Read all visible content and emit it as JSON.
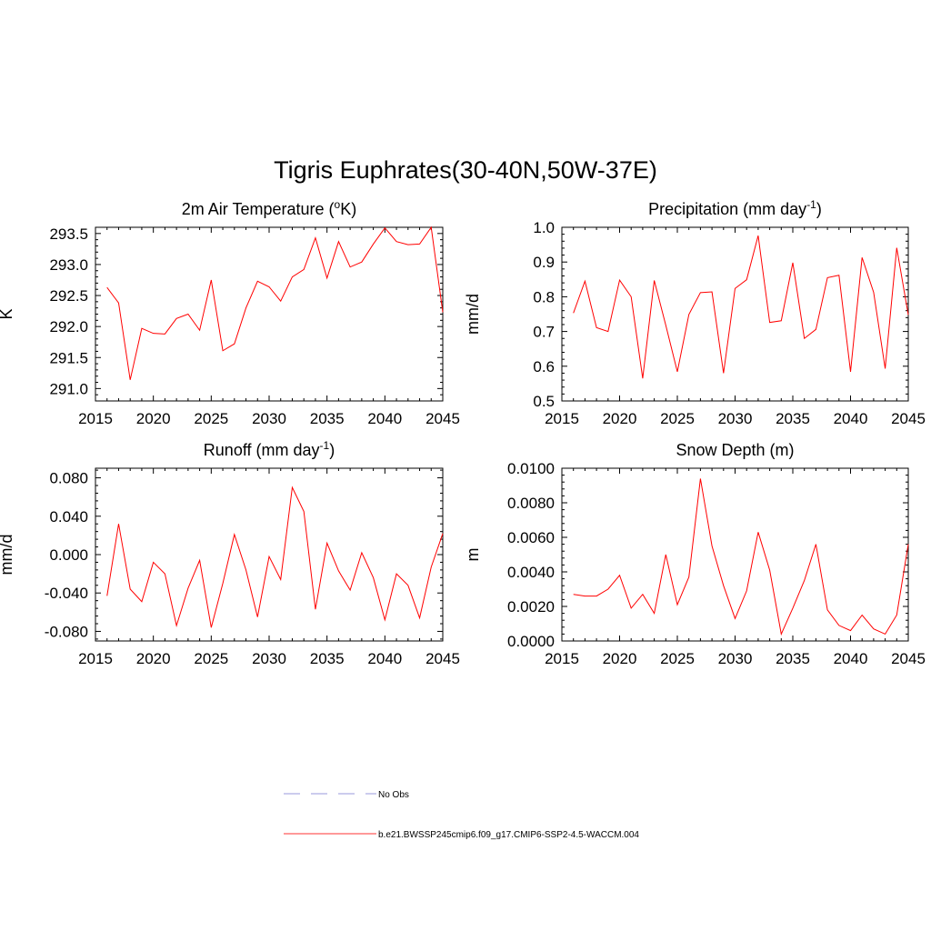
{
  "figure_title": "Tigris Euphrates(30-40N,50W-37E)",
  "legend": {
    "entries": [
      {
        "label": "No Obs",
        "color": "#9999dd",
        "dash": "dashed"
      },
      {
        "label": "b.e21.BWSSP245cmip6.f09_g17.CMIP6-SSP2-4.5-WACCM.004",
        "color": "#ff3333",
        "dash": "solid"
      }
    ]
  },
  "chart_data": [
    {
      "type": "line",
      "title": "2m Air Temperature (",
      "title_sup": "o",
      "title_tail": "K)",
      "ylabel": "K",
      "xlim": [
        2015,
        2045
      ],
      "ylim": [
        290.8,
        293.6
      ],
      "xticks": [
        2015,
        2020,
        2025,
        2030,
        2035,
        2040,
        2045
      ],
      "yticks": [
        291.0,
        291.5,
        292.0,
        292.5,
        293.0,
        293.5
      ],
      "ytick_decimals": 1,
      "ytick_labels": [
        "291.0",
        "291.5",
        "292.0",
        "292.5",
        "293.0",
        "293.5"
      ],
      "color": "#ff0000",
      "x": [
        2016,
        2017,
        2018,
        2019,
        2020,
        2021,
        2022,
        2023,
        2024,
        2025,
        2026,
        2027,
        2028,
        2029,
        2030,
        2031,
        2032,
        2033,
        2034,
        2035,
        2036,
        2037,
        2038,
        2039,
        2040,
        2041,
        2042,
        2043,
        2044,
        2045
      ],
      "y": [
        292.63,
        292.38,
        291.14,
        291.97,
        291.89,
        291.88,
        292.13,
        292.2,
        291.94,
        292.75,
        291.61,
        291.72,
        292.3,
        292.73,
        292.64,
        292.41,
        292.8,
        292.92,
        293.43,
        292.78,
        293.37,
        292.96,
        293.04,
        293.33,
        293.59,
        293.37,
        293.32,
        293.33,
        293.6,
        292.23
      ]
    },
    {
      "type": "line",
      "title": "Precipitation (mm day",
      "title_sup": "-1",
      "title_tail": ")",
      "ylabel": "mm/d",
      "xlim": [
        2015,
        2045
      ],
      "ylim": [
        0.5,
        1.0
      ],
      "xticks": [
        2015,
        2020,
        2025,
        2030,
        2035,
        2040,
        2045
      ],
      "yticks": [
        0.5,
        0.6,
        0.7,
        0.8,
        0.9,
        1.0
      ],
      "ytick_decimals": 1,
      "ytick_labels": [
        "0.5",
        "0.6",
        "0.7",
        "0.8",
        "0.9",
        "1.0"
      ],
      "color": "#ff0000",
      "x": [
        2016,
        2017,
        2018,
        2019,
        2020,
        2021,
        2022,
        2023,
        2024,
        2025,
        2026,
        2027,
        2028,
        2029,
        2030,
        2031,
        2032,
        2033,
        2034,
        2035,
        2036,
        2037,
        2038,
        2039,
        2040,
        2041,
        2042,
        2043,
        2044,
        2045
      ],
      "y": [
        0.753,
        0.845,
        0.711,
        0.7,
        0.848,
        0.8,
        0.565,
        0.847,
        0.718,
        0.584,
        0.749,
        0.812,
        0.814,
        0.58,
        0.824,
        0.849,
        0.976,
        0.726,
        0.731,
        0.898,
        0.68,
        0.706,
        0.855,
        0.862,
        0.584,
        0.913,
        0.813,
        0.593,
        0.941,
        0.748
      ]
    },
    {
      "type": "line",
      "title": "Runoff (mm day",
      "title_sup": "-1",
      "title_tail": ")",
      "ylabel": "mm/d",
      "xlim": [
        2015,
        2045
      ],
      "ylim": [
        -0.09,
        0.09
      ],
      "xticks": [
        2015,
        2020,
        2025,
        2030,
        2035,
        2040,
        2045
      ],
      "yticks": [
        -0.08,
        -0.04,
        0.0,
        0.04,
        0.08
      ],
      "ytick_decimals": 3,
      "ytick_labels": [
        "-0.080",
        "-0.040",
        "0.000",
        "0.040",
        "0.080"
      ],
      "color": "#ff0000",
      "x": [
        2016,
        2017,
        2018,
        2019,
        2020,
        2021,
        2022,
        2023,
        2024,
        2025,
        2026,
        2027,
        2028,
        2029,
        2030,
        2031,
        2032,
        2033,
        2034,
        2035,
        2036,
        2037,
        2038,
        2039,
        2040,
        2041,
        2042,
        2043,
        2044,
        2045
      ],
      "y": [
        -0.043,
        0.032,
        -0.036,
        -0.049,
        -0.008,
        -0.02,
        -0.074,
        -0.035,
        -0.006,
        -0.076,
        -0.03,
        0.021,
        -0.016,
        -0.065,
        -0.002,
        -0.026,
        0.07,
        0.045,
        -0.057,
        0.012,
        -0.017,
        -0.037,
        0.002,
        -0.024,
        -0.068,
        -0.02,
        -0.032,
        -0.066,
        -0.013,
        0.022
      ]
    },
    {
      "type": "line",
      "title": "Snow Depth (m)",
      "title_sup": "",
      "title_tail": "",
      "ylabel": "m",
      "xlim": [
        2015,
        2045
      ],
      "ylim": [
        0.0,
        0.01
      ],
      "xticks": [
        2015,
        2020,
        2025,
        2030,
        2035,
        2040,
        2045
      ],
      "yticks": [
        0.0,
        0.002,
        0.004,
        0.006,
        0.008,
        0.01
      ],
      "ytick_decimals": 4,
      "ytick_labels": [
        "0.0000",
        "0.0020",
        "0.0040",
        "0.0060",
        "0.0080",
        "0.0100"
      ],
      "color": "#ff0000",
      "x": [
        2016,
        2017,
        2018,
        2019,
        2020,
        2021,
        2022,
        2023,
        2024,
        2025,
        2026,
        2027,
        2028,
        2029,
        2030,
        2031,
        2032,
        2033,
        2034,
        2035,
        2036,
        2037,
        2038,
        2039,
        2040,
        2041,
        2042,
        2043,
        2044,
        2045
      ],
      "y": [
        0.0027,
        0.0026,
        0.0026,
        0.003,
        0.0038,
        0.0019,
        0.0027,
        0.0016,
        0.005,
        0.0021,
        0.0037,
        0.0094,
        0.0055,
        0.0032,
        0.0013,
        0.0029,
        0.0063,
        0.0041,
        0.0004,
        0.0019,
        0.0035,
        0.0056,
        0.0018,
        0.0009,
        0.0006,
        0.0015,
        0.0007,
        0.0004,
        0.0015,
        0.0056
      ]
    }
  ]
}
